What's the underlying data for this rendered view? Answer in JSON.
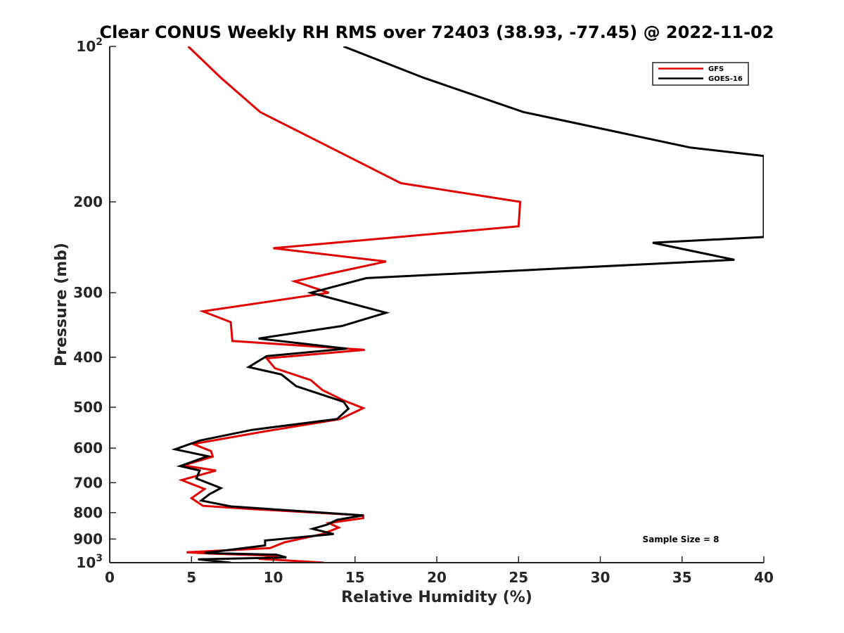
{
  "chart_data": {
    "type": "line",
    "title": "Clear CONUS Weekly RH RMS over 72403 (38.93, -77.45) @ 2022-11-02",
    "xlabel": "Relative Humidity (%)",
    "ylabel": "Pressure (mb)",
    "xlim": [
      0,
      40
    ],
    "ylim": [
      100,
      1000
    ],
    "y_scale": "log",
    "y_reversed": true,
    "x_ticks": [
      0,
      5,
      10,
      15,
      20,
      25,
      30,
      35,
      40
    ],
    "x_tick_labels": [
      "0",
      "5",
      "10",
      "15",
      "20",
      "25",
      "30",
      "35",
      "40"
    ],
    "y_ticks": [
      100,
      200,
      300,
      400,
      500,
      600,
      700,
      800,
      900,
      1000
    ],
    "y_tick_labels": [
      {
        "base": "10",
        "sup": "2"
      },
      {
        "base": "200",
        "sup": ""
      },
      {
        "base": "300",
        "sup": ""
      },
      {
        "base": "400",
        "sup": ""
      },
      {
        "base": "500",
        "sup": ""
      },
      {
        "base": "600",
        "sup": ""
      },
      {
        "base": "700",
        "sup": ""
      },
      {
        "base": "800",
        "sup": ""
      },
      {
        "base": "900",
        "sup": ""
      },
      {
        "base": "10",
        "sup": "3"
      }
    ],
    "grid": false,
    "legend_position": "top-right",
    "annotation": "Sample Size = 8",
    "series": [
      {
        "name": "GFS",
        "color": "#e00000",
        "points": [
          [
            4.8,
            100
          ],
          [
            6.8,
            115
          ],
          [
            9.2,
            134
          ],
          [
            13.5,
            157
          ],
          [
            17.8,
            184
          ],
          [
            25.1,
            200
          ],
          [
            25.0,
            223
          ],
          [
            10.0,
            246
          ],
          [
            16.9,
            261
          ],
          [
            11.3,
            285
          ],
          [
            13.4,
            300
          ],
          [
            5.7,
            326
          ],
          [
            7.4,
            342
          ],
          [
            7.5,
            372
          ],
          [
            15.6,
            387
          ],
          [
            9.6,
            402
          ],
          [
            10.1,
            420
          ],
          [
            12.3,
            443
          ],
          [
            13.0,
            463
          ],
          [
            14.3,
            485
          ],
          [
            15.5,
            502
          ],
          [
            14.1,
            527
          ],
          [
            9.6,
            556
          ],
          [
            5.1,
            589
          ],
          [
            6.2,
            608
          ],
          [
            6.3,
            623
          ],
          [
            4.5,
            648
          ],
          [
            6.5,
            663
          ],
          [
            4.4,
            692
          ],
          [
            5.8,
            720
          ],
          [
            5.0,
            750
          ],
          [
            5.7,
            776
          ],
          [
            8.6,
            787
          ],
          [
            15.5,
            810
          ],
          [
            15.5,
            820
          ],
          [
            13.4,
            838
          ],
          [
            14.0,
            855
          ],
          [
            13.0,
            880
          ],
          [
            10.7,
            913
          ],
          [
            9.8,
            937
          ],
          [
            4.7,
            955
          ],
          [
            6.1,
            960
          ],
          [
            10.3,
            970
          ],
          [
            9.1,
            983
          ],
          [
            13.1,
            1000
          ]
        ]
      },
      {
        "name": "GOES-16",
        "color": "#000000",
        "points": [
          [
            14.3,
            100
          ],
          [
            19.2,
            115
          ],
          [
            25.3,
            134
          ],
          [
            35.5,
            157
          ],
          [
            40.0,
            163
          ],
          [
            40.0,
            234
          ],
          [
            33.2,
            240
          ],
          [
            38.2,
            259
          ],
          [
            15.7,
            281
          ],
          [
            12.3,
            300
          ],
          [
            16.9,
            328
          ],
          [
            14.2,
            348
          ],
          [
            9.1,
            368
          ],
          [
            14.5,
            385
          ],
          [
            9.6,
            398
          ],
          [
            8.5,
            418
          ],
          [
            10.5,
            432
          ],
          [
            11.4,
            455
          ],
          [
            14.3,
            488
          ],
          [
            14.6,
            503
          ],
          [
            13.9,
            527
          ],
          [
            8.7,
            553
          ],
          [
            5.5,
            580
          ],
          [
            4.0,
            603
          ],
          [
            6.0,
            622
          ],
          [
            4.3,
            650
          ],
          [
            5.5,
            663
          ],
          [
            5.3,
            687
          ],
          [
            6.8,
            717
          ],
          [
            6.1,
            737
          ],
          [
            5.6,
            758
          ],
          [
            7.4,
            778
          ],
          [
            15.5,
            810
          ],
          [
            13.9,
            826
          ],
          [
            13.3,
            844
          ],
          [
            12.4,
            860
          ],
          [
            13.7,
            880
          ],
          [
            9.5,
            906
          ],
          [
            9.5,
            926
          ],
          [
            5.8,
            958
          ],
          [
            10.2,
            965
          ],
          [
            10.8,
            977
          ],
          [
            5.4,
            985
          ],
          [
            7.4,
            1000
          ]
        ]
      }
    ]
  }
}
